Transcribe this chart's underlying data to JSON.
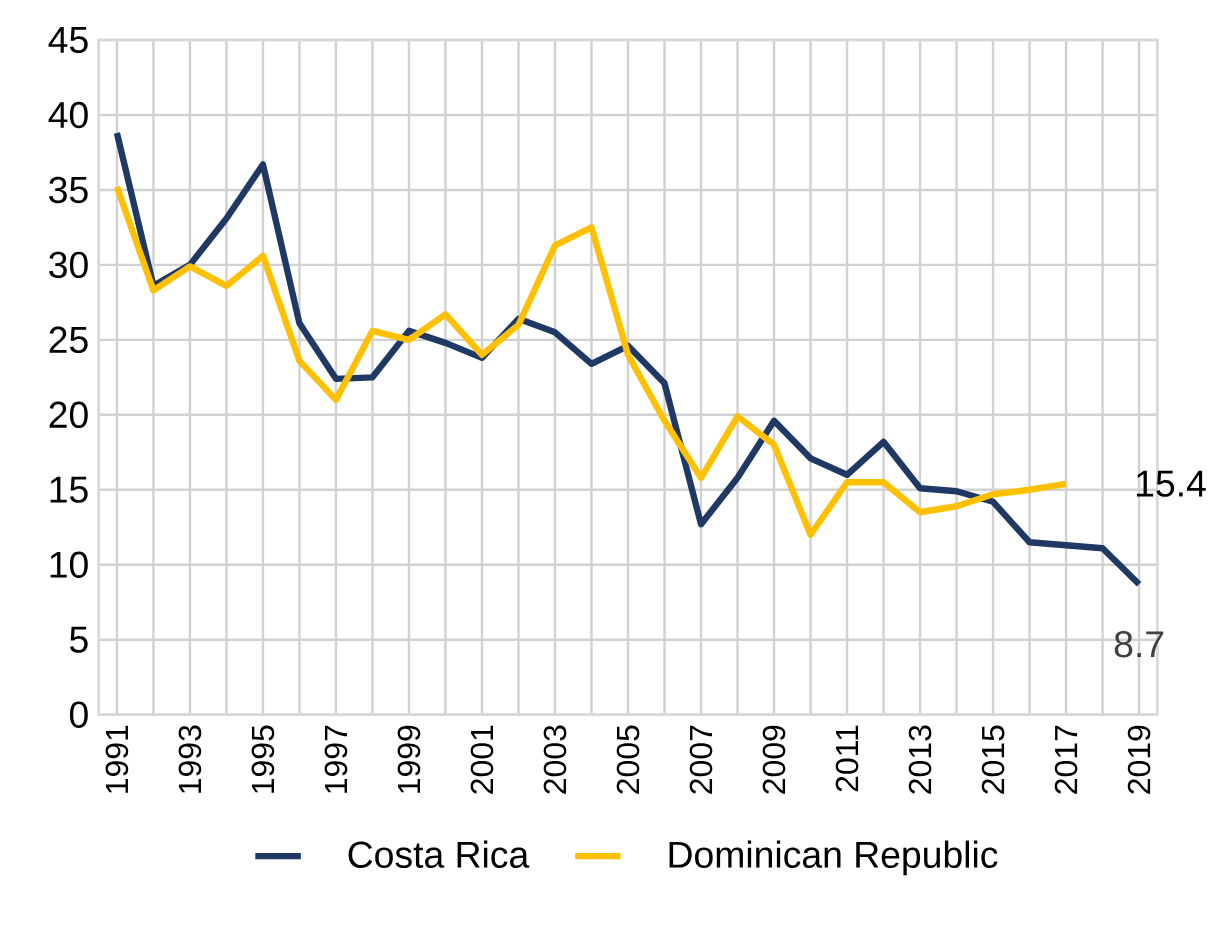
{
  "chart_data": {
    "type": "line",
    "categories": [
      "1991",
      null,
      "1993",
      null,
      "1995",
      null,
      "1997",
      null,
      "1999",
      null,
      "2001",
      null,
      "2003",
      null,
      "2005",
      null,
      "2007",
      null,
      "2009",
      null,
      "2011",
      null,
      "2013",
      null,
      "2015",
      null,
      "2017",
      null,
      "2019"
    ],
    "series": [
      {
        "name": "Costa Rica",
        "color": "#1f3864",
        "values": [
          38.8,
          28.6,
          30.0,
          33.1,
          36.7,
          26.1,
          22.4,
          22.5,
          25.6,
          24.8,
          23.8,
          26.4,
          25.5,
          23.4,
          24.6,
          22.1,
          12.7,
          15.8,
          19.6,
          17.1,
          16.0,
          18.2,
          15.1,
          14.9,
          14.2,
          11.5,
          11.3,
          11.1,
          8.7
        ]
      },
      {
        "name": "Dominican Republic",
        "color": "#ffc000",
        "values": [
          35.2,
          28.3,
          29.9,
          28.6,
          30.6,
          23.6,
          21.0,
          25.6,
          25.0,
          26.7,
          24.0,
          26.0,
          31.3,
          32.5,
          24.0,
          19.6,
          15.8,
          19.9,
          18.0,
          12.0,
          15.5,
          15.5,
          13.5,
          13.9,
          14.7,
          15.0,
          15.4,
          null,
          null
        ]
      }
    ],
    "ylim": [
      0,
      45
    ],
    "yticks": [
      0,
      5,
      10,
      15,
      20,
      25,
      30,
      35,
      40,
      45
    ],
    "grid": true,
    "legend": "bottom",
    "marker": "none",
    "line_style": "solid",
    "annotations": [
      {
        "text": "15.4",
        "x": "2017",
        "y": 15.4
      },
      {
        "text": "8.7",
        "x": "2019",
        "y": 8.7
      }
    ]
  }
}
